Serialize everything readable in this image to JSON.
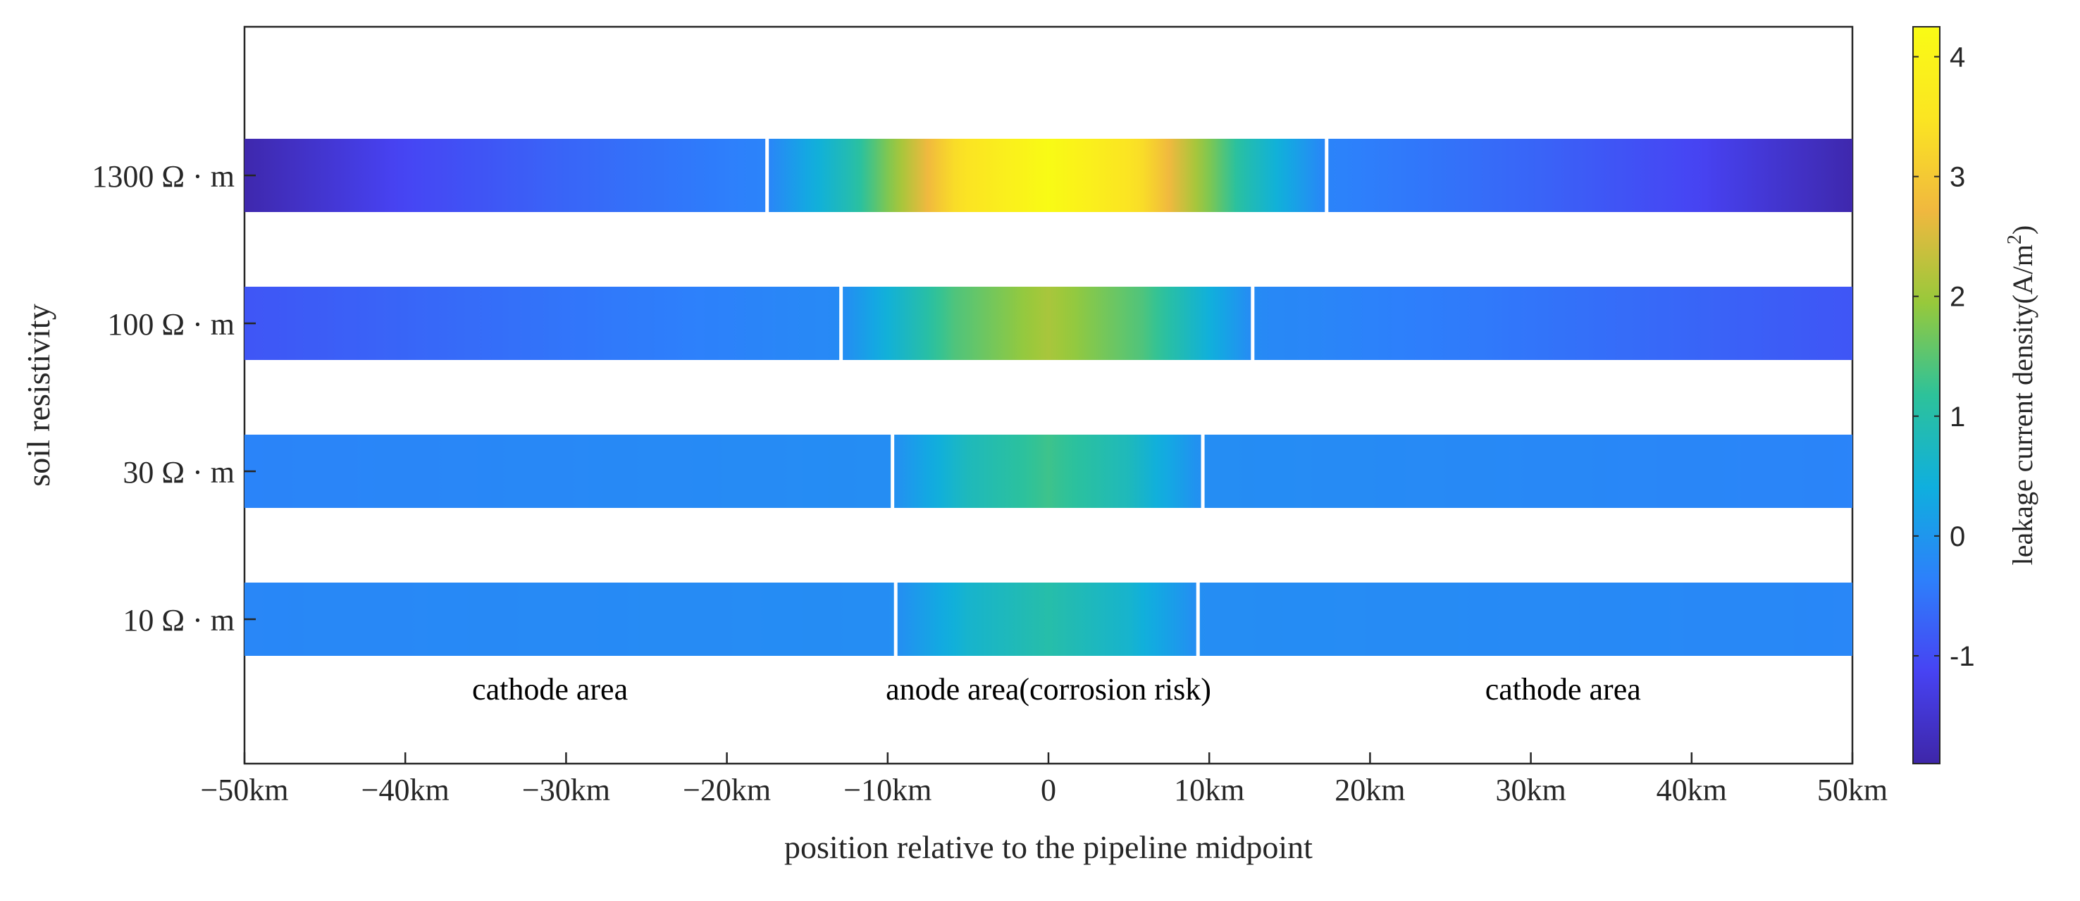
{
  "chart_data": {
    "type": "heatmap",
    "xlabel": "position relative to the pipeline midpoint",
    "ylabel": "soil resistivity",
    "xlim": [
      -50,
      50
    ],
    "x_ticks": [
      {
        "value": -50,
        "label": "−50km"
      },
      {
        "value": -40,
        "label": "−40km"
      },
      {
        "value": -30,
        "label": "−30km"
      },
      {
        "value": -20,
        "label": "−20km"
      },
      {
        "value": -10,
        "label": "−10km"
      },
      {
        "value": 0,
        "label": "0"
      },
      {
        "value": 10,
        "label": "10km"
      },
      {
        "value": 20,
        "label": "20km"
      },
      {
        "value": 30,
        "label": "30km"
      },
      {
        "value": 40,
        "label": "40km"
      },
      {
        "value": 50,
        "label": "50km"
      }
    ],
    "colorbar": {
      "label": "leakage current density(A/m",
      "label_superscript": "2",
      "label_close": ")",
      "range": [
        -1.9,
        4.25
      ],
      "ticks": [
        {
          "value": -1,
          "label": "-1"
        },
        {
          "value": 0,
          "label": "0"
        },
        {
          "value": 1,
          "label": "1"
        },
        {
          "value": 2,
          "label": "2"
        },
        {
          "value": 3,
          "label": "3"
        },
        {
          "value": 4,
          "label": "4"
        }
      ],
      "colormap": [
        "#3e26a8",
        "#4743f3",
        "#2d80fb",
        "#0fafde",
        "#2dc29a",
        "#97c93b",
        "#f0b83f",
        "#fbe522",
        "#f9fb15"
      ]
    },
    "series": [
      {
        "name": "1300 Ω · m",
        "anode_boundaries": [
          -17.5,
          17.3
        ],
        "profile": {
          "x": [
            -50,
            -40,
            -30,
            -17.5,
            -12,
            -6,
            0,
            6,
            12,
            17.3,
            30,
            40,
            50
          ],
          "value": [
            -1.85,
            -1.1,
            -0.7,
            -0.3,
            1.0,
            3.3,
            4.25,
            3.3,
            1.0,
            -0.3,
            -0.7,
            -1.1,
            -1.85
          ]
        }
      },
      {
        "name": "100 Ω · m",
        "anode_boundaries": [
          -12.9,
          12.7
        ],
        "profile": {
          "x": [
            -50,
            -30,
            -12.9,
            -6,
            0,
            6,
            12.7,
            30,
            50
          ],
          "value": [
            -0.9,
            -0.5,
            -0.2,
            1.4,
            2.1,
            1.4,
            -0.2,
            -0.5,
            -0.9
          ]
        }
      },
      {
        "name": "30 Ω · m",
        "anode_boundaries": [
          -9.7,
          9.6
        ],
        "profile": {
          "x": [
            -50,
            -9.7,
            -5,
            0,
            5,
            9.6,
            50
          ],
          "value": [
            -0.3,
            -0.15,
            0.8,
            1.3,
            0.8,
            -0.15,
            -0.3
          ]
        }
      },
      {
        "name": "10 Ω · m",
        "anode_boundaries": [
          -9.5,
          9.3
        ],
        "profile": {
          "x": [
            -50,
            -9.5,
            -5,
            0,
            5,
            9.3,
            50
          ],
          "value": [
            -0.25,
            -0.15,
            0.6,
            1.0,
            0.6,
            -0.15,
            -0.25
          ]
        }
      }
    ],
    "annotations": [
      {
        "text": "cathode area",
        "x": -31
      },
      {
        "text": "anode area(corrosion risk)",
        "x": 0
      },
      {
        "text": "cathode area",
        "x": 32
      }
    ]
  }
}
